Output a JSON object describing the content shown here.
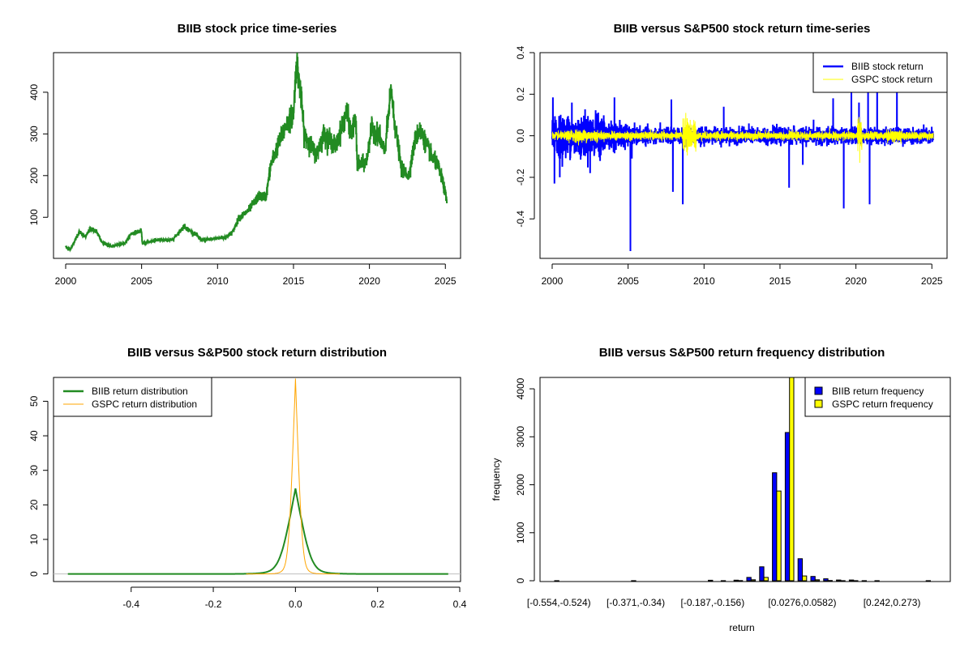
{
  "chart_data": [
    {
      "type": "line",
      "title": "BIIB stock price time-series",
      "xlabel": "",
      "ylabel": "",
      "xlim": [
        1999.2,
        2026.0
      ],
      "ylim": [
        1.4,
        495
      ],
      "xticks": [
        2000,
        2005,
        2010,
        2015,
        2020,
        2025
      ],
      "yticks": [
        100,
        200,
        300,
        400
      ],
      "color": "#228B22",
      "series_approx": [
        [
          2000,
          30
        ],
        [
          2000.3,
          22
        ],
        [
          2000.9,
          65
        ],
        [
          2001.3,
          52
        ],
        [
          2001.6,
          72
        ],
        [
          2002,
          68
        ],
        [
          2002.4,
          40
        ],
        [
          2003,
          30
        ],
        [
          2003.9,
          38
        ],
        [
          2004.3,
          60
        ],
        [
          2004.98,
          68
        ],
        [
          2005.05,
          38
        ],
        [
          2006,
          45
        ],
        [
          2007,
          45
        ],
        [
          2007.8,
          78
        ],
        [
          2008.5,
          60
        ],
        [
          2009,
          45
        ],
        [
          2010,
          50
        ],
        [
          2010.5,
          52
        ],
        [
          2011,
          65
        ],
        [
          2011.4,
          98
        ],
        [
          2012,
          115
        ],
        [
          2012.7,
          150
        ],
        [
          2013.2,
          150
        ],
        [
          2013.5,
          225
        ],
        [
          2014,
          275
        ],
        [
          2014.5,
          320
        ],
        [
          2015,
          350
        ],
        [
          2015.2,
          475
        ],
        [
          2015.5,
          390
        ],
        [
          2015.7,
          300
        ],
        [
          2016.5,
          250
        ],
        [
          2017,
          300
        ],
        [
          2017.8,
          270
        ],
        [
          2018.5,
          355
        ],
        [
          2018.8,
          300
        ],
        [
          2019.1,
          335
        ],
        [
          2019.2,
          225
        ],
        [
          2019.8,
          232
        ],
        [
          2020.1,
          310
        ],
        [
          2020.6,
          300
        ],
        [
          2021,
          255
        ],
        [
          2021.45,
          410
        ],
        [
          2021.6,
          340
        ],
        [
          2021.9,
          270
        ],
        [
          2022.1,
          215
        ],
        [
          2022.6,
          200
        ],
        [
          2023,
          285
        ],
        [
          2023.3,
          310
        ],
        [
          2023.7,
          280
        ],
        [
          2024.1,
          245
        ],
        [
          2024.5,
          225
        ],
        [
          2024.8,
          190
        ],
        [
          2025.1,
          140
        ]
      ]
    },
    {
      "type": "line",
      "title": "BIIB versus S&P500 stock return time-series",
      "xlabel": "",
      "ylabel": "",
      "xlim": [
        1999.2,
        2026.0
      ],
      "ylim": [
        -0.59,
        0.4
      ],
      "xticks": [
        2000,
        2005,
        2010,
        2015,
        2020,
        2025
      ],
      "yticks": [
        "-0.4",
        "-0.2",
        "0.0",
        "0.2",
        "0.4"
      ],
      "legend": {
        "position": "top-right",
        "items": [
          {
            "label": "BIIB stock return",
            "color": "#0000FF"
          },
          {
            "label": "GSPC stock return",
            "color": "#FFFF00"
          }
        ]
      },
      "series": [
        {
          "name": "BIIB stock return",
          "color": "#0000FF",
          "notable_points": [
            [
              2000.05,
              0.185
            ],
            [
              2000.15,
              -0.23
            ],
            [
              2000.5,
              -0.2
            ],
            [
              2001.3,
              0.16
            ],
            [
              2002.5,
              -0.18
            ],
            [
              2004.1,
              0.185
            ],
            [
              2005.15,
              -0.555
            ],
            [
              2005.25,
              -0.11
            ],
            [
              2007.85,
              0.175
            ],
            [
              2007.95,
              -0.27
            ],
            [
              2008.6,
              -0.33
            ],
            [
              2011.3,
              0.14
            ],
            [
              2015.6,
              -0.25
            ],
            [
              2016.5,
              -0.14
            ],
            [
              2018.5,
              0.18
            ],
            [
              2019.2,
              -0.35
            ],
            [
              2019.7,
              0.26
            ],
            [
              2020.2,
              0.16
            ],
            [
              2020.8,
              0.3
            ],
            [
              2020.9,
              -0.33
            ],
            [
              2021.4,
              0.38
            ],
            [
              2022.7,
              0.25
            ]
          ]
        },
        {
          "name": "GSPC stock return",
          "color": "#FFFF00",
          "notable_points": [
            [
              2008.8,
              0.11
            ],
            [
              2008.9,
              -0.095
            ],
            [
              2020.2,
              0.09
            ],
            [
              2020.25,
              -0.13
            ]
          ]
        }
      ]
    },
    {
      "type": "line",
      "title": "BIIB versus S&P500 stock return distribution",
      "xlabel": "",
      "ylabel": "",
      "xlim": [
        -0.589,
        0.402
      ],
      "ylim": [
        -2.2,
        56.9
      ],
      "xticks": [
        "-0.4",
        "-0.2",
        "0.0",
        "0.2",
        "0.4"
      ],
      "yticks": [
        "0",
        "10",
        "20",
        "30",
        "40",
        "50"
      ],
      "legend": {
        "position": "top-left",
        "items": [
          {
            "label": "BIIB return distribution",
            "color": "#228B22"
          },
          {
            "label": "GSPC return distribution",
            "color": "#FFA500"
          }
        ]
      },
      "series": [
        {
          "name": "BIIB return distribution",
          "color": "#228B22",
          "peak": 24.5,
          "peak_x": 0.0,
          "range": [
            -0.554,
            0.373
          ]
        },
        {
          "name": "GSPC return distribution",
          "color": "#FFA500",
          "peak": 56.5,
          "peak_x": 0.0,
          "range": [
            -0.12,
            0.11
          ]
        }
      ]
    },
    {
      "type": "bar",
      "title": "BIIB versus S&P500 return frequency distribution",
      "xlabel": "return",
      "ylabel": "frequency",
      "ylim": [
        0,
        4254
      ],
      "yticks": [
        "0",
        "1000",
        "2000",
        "3000",
        "4000"
      ],
      "bin_count": 30,
      "tick_labels": [
        {
          "bin": 0,
          "label": "[-0.554,-0.524)"
        },
        {
          "bin": 6,
          "label": "[-0.371,-0.34)"
        },
        {
          "bin": 12,
          "label": "[-0.187,-0.156)"
        },
        {
          "bin": 19,
          "label": "[0.0276,0.0582)"
        },
        {
          "bin": 26,
          "label": "[0.242,0.273)"
        }
      ],
      "legend": {
        "position": "top-right",
        "items": [
          {
            "label": "BIIB return frequency",
            "color": "#0000FF"
          },
          {
            "label": "GSPC return frequency",
            "color": "#FFFF00"
          }
        ]
      },
      "series": [
        {
          "name": "BIIB return frequency",
          "color": "#0000FF",
          "values": [
            1,
            0,
            0,
            0,
            0,
            0,
            1,
            0,
            0,
            0,
            0,
            0,
            10,
            2,
            12,
            70,
            290,
            2250,
            3090,
            460,
            90,
            40,
            15,
            15,
            2,
            1,
            0,
            0,
            0,
            1
          ]
        },
        {
          "name": "GSPC return frequency",
          "color": "#FFFF00",
          "values": [
            0,
            0,
            0,
            0,
            0,
            0,
            0,
            0,
            0,
            0,
            0,
            0,
            0,
            0,
            3,
            20,
            70,
            1870,
            4400,
            100,
            20,
            5,
            2,
            2,
            0,
            0,
            0,
            0,
            0,
            0
          ]
        }
      ]
    }
  ]
}
